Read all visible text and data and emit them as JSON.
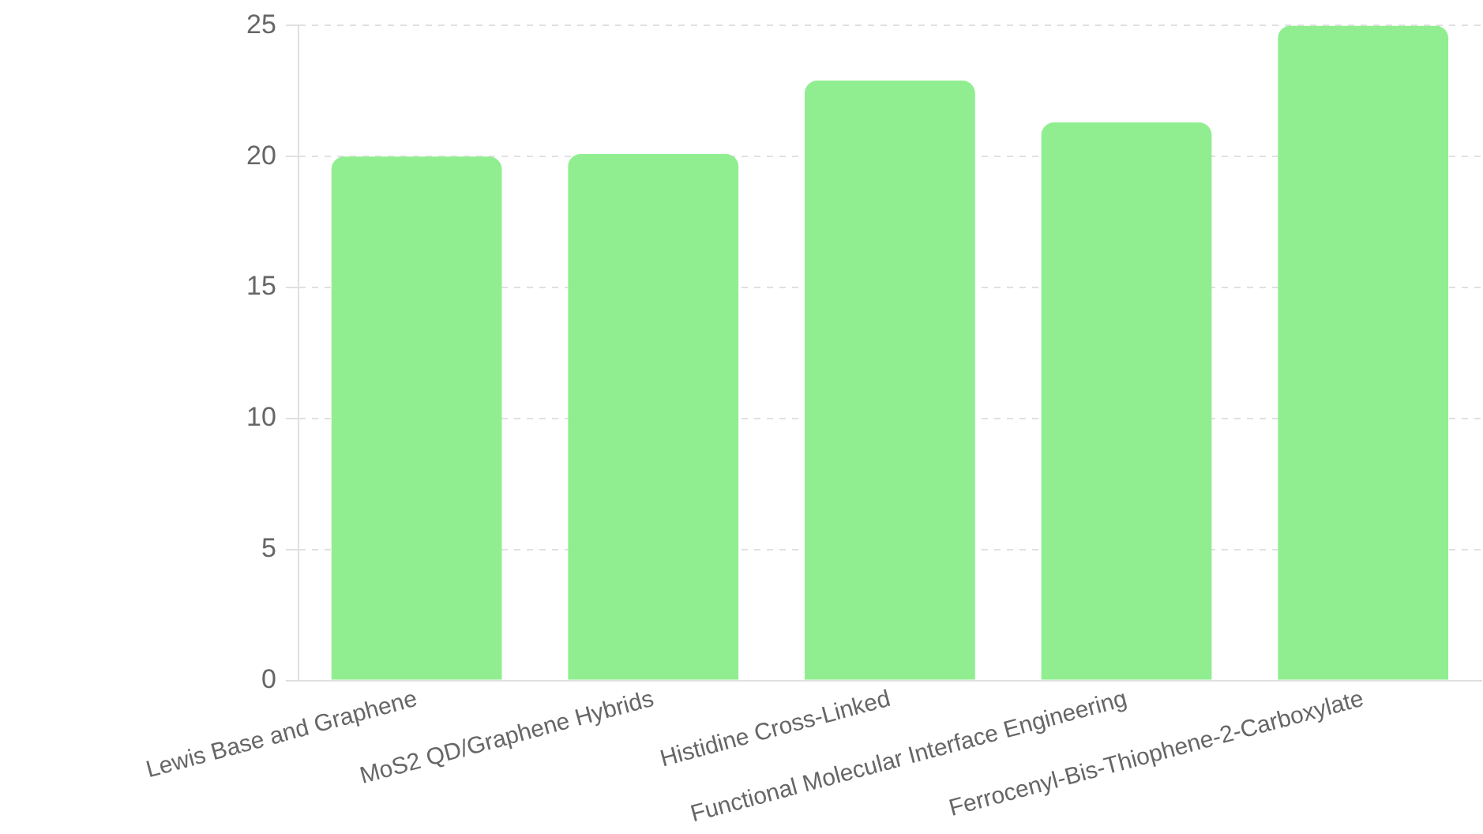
{
  "chart_data": {
    "type": "bar",
    "categories": [
      "Lewis Base and Graphene",
      "MoS2 QD/Graphene Hybrids",
      "Histidine Cross-Linked",
      "Functional Molecular Interface Engineering",
      "Ferrocenyl-Bis-Thiophene-2-Carboxylate"
    ],
    "values": [
      20,
      20.1,
      22.9,
      21.3,
      25
    ],
    "color": "#90ee90",
    "ylim": [
      0,
      25
    ],
    "yticks": [
      0,
      5,
      10,
      15,
      20,
      25
    ],
    "grid": "y",
    "legend": false
  }
}
